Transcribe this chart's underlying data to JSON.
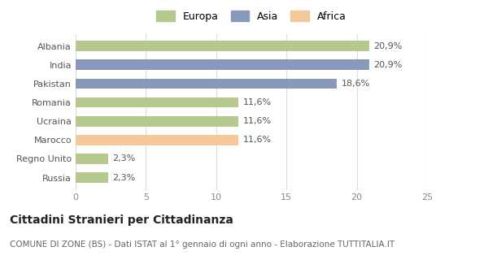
{
  "categories": [
    "Russia",
    "Regno Unito",
    "Marocco",
    "Ucraina",
    "Romania",
    "Pakistan",
    "India",
    "Albania"
  ],
  "values": [
    2.3,
    2.3,
    11.6,
    11.6,
    11.6,
    18.6,
    20.9,
    20.9
  ],
  "colors": [
    "#b5c98e",
    "#b5c98e",
    "#f5c89a",
    "#b5c98e",
    "#b5c98e",
    "#8899bb",
    "#8899bb",
    "#b5c98e"
  ],
  "labels": [
    "2,3%",
    "2,3%",
    "11,6%",
    "11,6%",
    "11,6%",
    "18,6%",
    "20,9%",
    "20,9%"
  ],
  "legend_labels": [
    "Europa",
    "Asia",
    "Africa"
  ],
  "legend_colors": [
    "#b5c98e",
    "#8899bb",
    "#f5c89a"
  ],
  "title": "Cittadini Stranieri per Cittadinanza",
  "subtitle": "COMUNE DI ZONE (BS) - Dati ISTAT al 1° gennaio di ogni anno - Elaborazione TUTTITALIA.IT",
  "xlim": [
    0,
    25
  ],
  "xticks": [
    0,
    5,
    10,
    15,
    20,
    25
  ],
  "background_color": "#ffffff",
  "bar_height": 0.55,
  "title_fontsize": 10,
  "subtitle_fontsize": 7.5,
  "tick_fontsize": 8,
  "label_fontsize": 8,
  "legend_fontsize": 9
}
